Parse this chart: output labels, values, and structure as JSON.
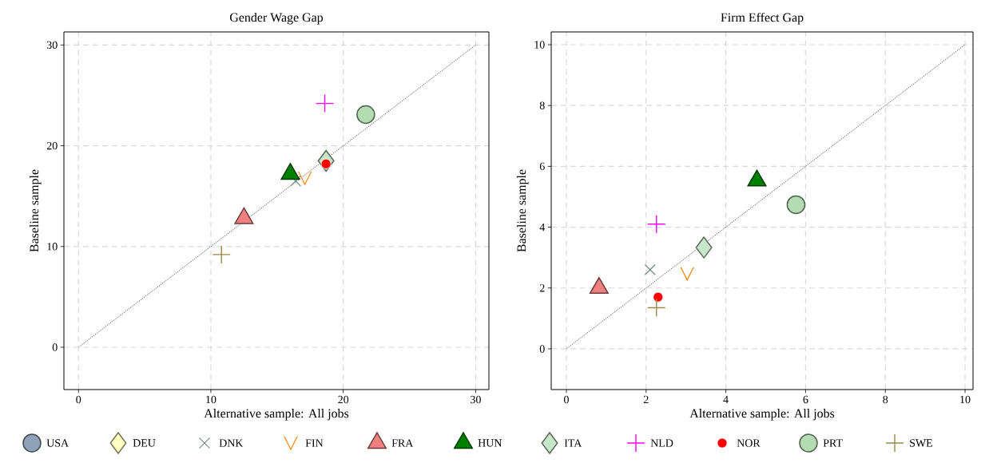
{
  "chart_data": [
    {
      "type": "scatter",
      "title": "Gender Wage Gap",
      "xlabel": "Alternative sample: All jobs",
      "ylabel": "Baseline sample",
      "xlim": [
        -1.1,
        31
      ],
      "ylim": [
        -4.2,
        31.3
      ],
      "xticks": [
        0,
        10,
        20,
        30
      ],
      "yticks": [
        0,
        10,
        20,
        30
      ],
      "grid": true,
      "legend": "bottom",
      "series": [
        {
          "type": "line",
          "x": [
            0,
            30
          ],
          "values": [
            0,
            30
          ],
          "color": "#333333",
          "line_style": "dotted",
          "marker": "none"
        },
        {
          "name": "USA",
          "x": [
            null
          ],
          "values": [
            null
          ],
          "color": "#8ea3b8",
          "marker": "circle"
        },
        {
          "name": "DEU",
          "x": [
            null
          ],
          "values": [
            null
          ],
          "color": "#ffffc0",
          "marker": "diamond"
        },
        {
          "name": "DNK",
          "x": [
            16.4
          ],
          "values": [
            16.5
          ],
          "color": "#6e8b87",
          "marker": "cross"
        },
        {
          "name": "FIN",
          "x": [
            17.1
          ],
          "values": [
            16.8
          ],
          "color": "#ff8000"
        },
        {
          "name": "FRA",
          "x": [
            12.5
          ],
          "values": [
            12.8
          ],
          "color": "#f08080",
          "marker": "triangle"
        },
        {
          "name": "HUN",
          "x": [
            16.0
          ],
          "values": [
            17.2
          ],
          "color": "#008000",
          "marker": "triangle"
        },
        {
          "name": "ITA",
          "x": [
            18.7
          ],
          "values": [
            18.5
          ],
          "color": "#c8e6c8",
          "marker": "diamond"
        },
        {
          "name": "NLD",
          "x": [
            18.6
          ],
          "values": [
            24.2
          ],
          "color": "#ff00ff",
          "marker": "plus"
        },
        {
          "name": "NOR",
          "x": [
            18.7
          ],
          "values": [
            18.2
          ],
          "color": "#ff0000",
          "marker": "dot"
        },
        {
          "name": "PRT",
          "x": [
            21.7
          ],
          "values": [
            23.1
          ],
          "color": "#b3dcb3",
          "marker": "circle"
        },
        {
          "name": "SWE",
          "x": [
            10.8
          ],
          "values": [
            9.2
          ],
          "color": "#9c8a4a",
          "marker": "plus"
        }
      ]
    },
    {
      "type": "scatter",
      "title": "Firm Effect Gap",
      "xlabel": "Alternative sample: All jobs",
      "ylabel": "Baseline sample",
      "xlim": [
        -0.38,
        10.2
      ],
      "ylim": [
        -1.34,
        10.42
      ],
      "xticks": [
        0,
        2,
        4,
        6,
        8,
        10
      ],
      "yticks": [
        0,
        2,
        4,
        6,
        8,
        10
      ],
      "grid": true,
      "series": [
        {
          "type": "line",
          "x": [
            0,
            10
          ],
          "values": [
            0,
            10
          ],
          "color": "#333333",
          "line_style": "dotted",
          "marker": "none"
        },
        {
          "x": [
            2.1
          ],
          "values": [
            2.6
          ],
          "color": "#6e8b87",
          "marker": "cross"
        },
        {
          "x": [
            3.03
          ],
          "values": [
            2.47
          ],
          "color": "#ff8000"
        },
        {
          "x": [
            0.82
          ],
          "values": [
            2.0
          ],
          "color": "#f08080",
          "marker": "triangle"
        },
        {
          "x": [
            4.78
          ],
          "values": [
            5.53
          ],
          "color": "#008000",
          "marker": "triangle"
        },
        {
          "x": [
            3.45
          ],
          "values": [
            3.33
          ],
          "color": "#c8e6c8",
          "marker": "diamond"
        },
        {
          "x": [
            2.26
          ],
          "values": [
            4.1
          ],
          "color": "#ff00ff",
          "marker": "plus"
        },
        {
          "x": [
            2.3
          ],
          "values": [
            1.7
          ],
          "color": "#ff0000",
          "marker": "dot"
        },
        {
          "x": [
            5.76
          ],
          "values": [
            4.74
          ],
          "color": "#b3dcb3",
          "marker": "circle"
        },
        {
          "x": [
            2.26
          ],
          "values": [
            1.35
          ],
          "color": "#9c8a4a",
          "marker": "plus"
        }
      ]
    }
  ]
}
